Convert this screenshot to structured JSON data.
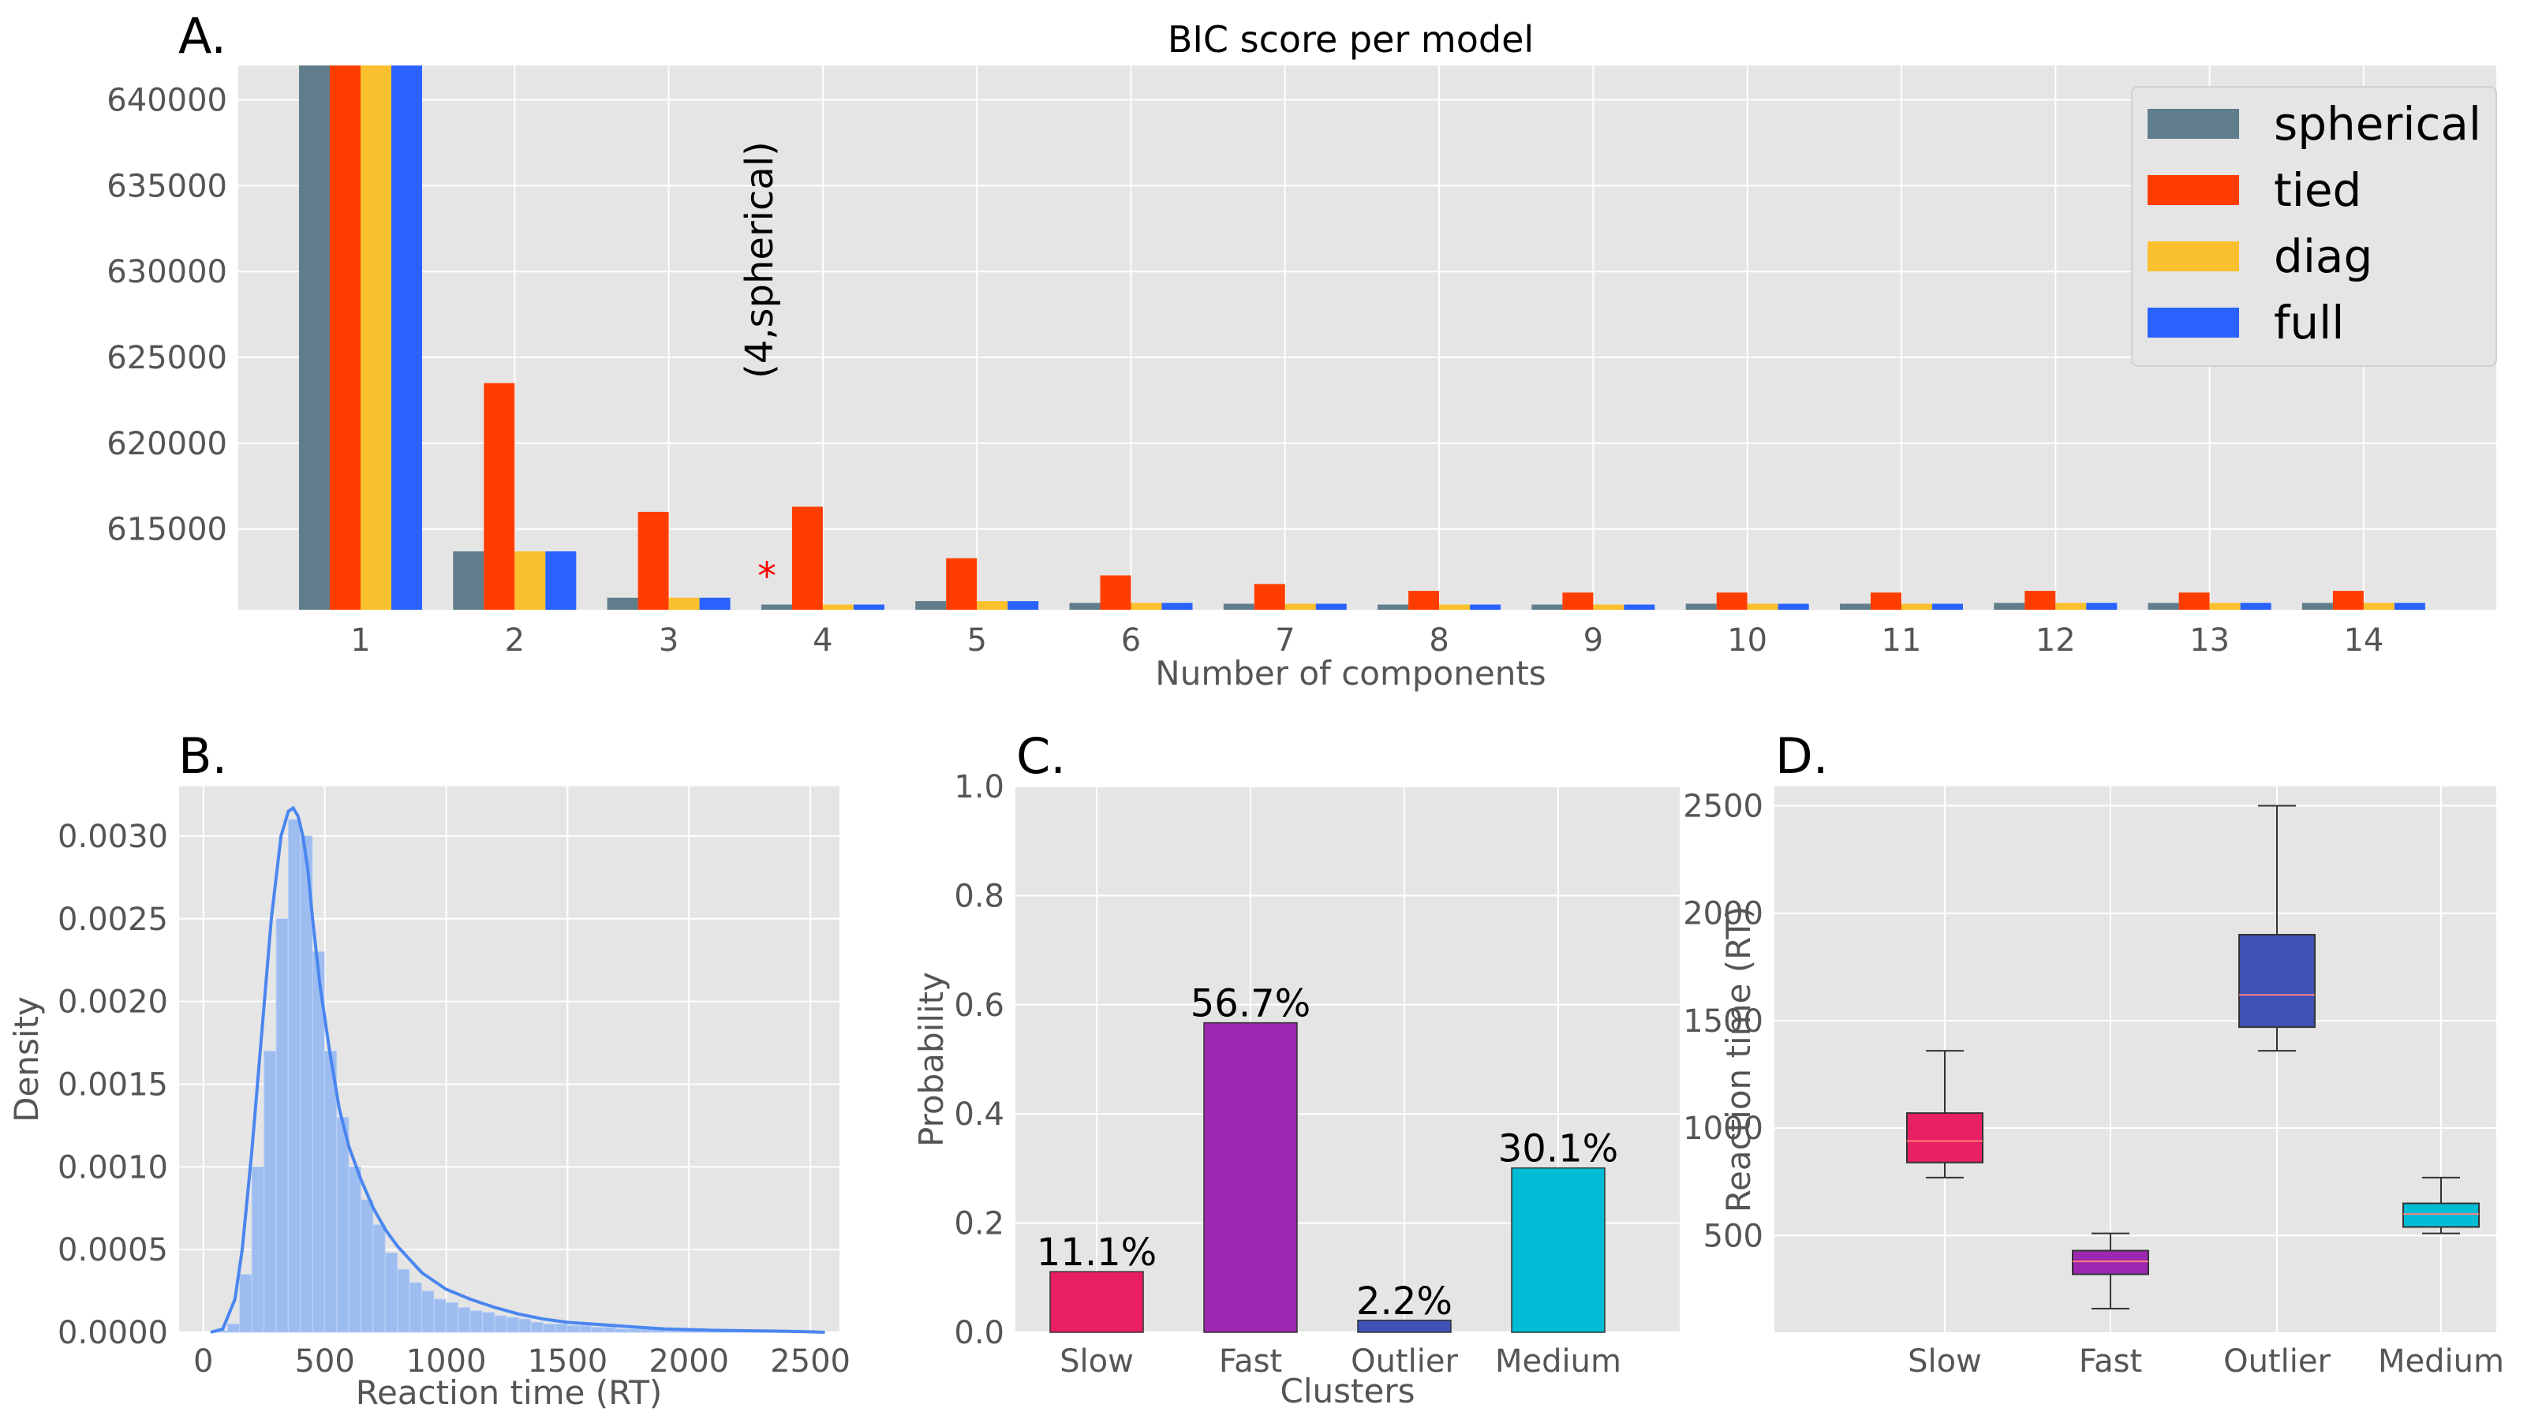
{
  "chart_data": [
    {
      "id": "A",
      "panel_label": "A.",
      "type": "bar",
      "title": "BIC score per model",
      "xlabel": "Number of components",
      "ylabel": "",
      "categories": [
        "1",
        "2",
        "3",
        "4",
        "5",
        "6",
        "7",
        "8",
        "9",
        "10",
        "11",
        "12",
        "13",
        "14"
      ],
      "ylim": [
        610300,
        642000
      ],
      "yticks": [
        "615000",
        "620000",
        "625000",
        "630000",
        "635000",
        "640000"
      ],
      "series": [
        {
          "name": "spherical",
          "color": "#607d8b",
          "values": [
            642000,
            613700,
            611000,
            610600,
            610800,
            610700,
            610650,
            610600,
            610600,
            610650,
            610650,
            610700,
            610700,
            610700
          ]
        },
        {
          "name": "tied",
          "color": "#ff3d00",
          "values": [
            642000,
            623500,
            616000,
            616300,
            613300,
            612300,
            611800,
            611400,
            611300,
            611300,
            611300,
            611400,
            611300,
            611400
          ]
        },
        {
          "name": "diag",
          "color": "#fbc02d",
          "values": [
            642000,
            613700,
            611000,
            610600,
            610800,
            610700,
            610650,
            610600,
            610600,
            610650,
            610650,
            610700,
            610700,
            610700
          ]
        },
        {
          "name": "full",
          "color": "#2962ff",
          "values": [
            642000,
            613700,
            611000,
            610600,
            610800,
            610700,
            610650,
            610600,
            610600,
            610650,
            610650,
            610700,
            610700,
            610700
          ]
        }
      ],
      "annotation": {
        "text": "(4,spherical)",
        "marker": "*",
        "marker_color": "#ff0000",
        "category": "4"
      },
      "legend_position": "top-right",
      "grid": true
    },
    {
      "id": "B",
      "panel_label": "B.",
      "type": "area",
      "xlabel": "Reaction time (RT)",
      "ylabel": "Density",
      "xlim": [
        -100,
        2620
      ],
      "ylim": [
        0,
        0.0033
      ],
      "xticks": [
        "0",
        "500",
        "1000",
        "1500",
        "2000",
        "2500"
      ],
      "yticks": [
        "0.0000",
        "0.0005",
        "0.0010",
        "0.0015",
        "0.0020",
        "0.0025",
        "0.0030"
      ],
      "bar_color": "#9dbcf0",
      "line_color": "#4a86f0",
      "histogram": {
        "bin_width": 50,
        "bins_x": [
          75,
          125,
          175,
          225,
          275,
          325,
          375,
          425,
          475,
          525,
          575,
          625,
          675,
          725,
          775,
          825,
          875,
          925,
          975,
          1025,
          1075,
          1125,
          1175,
          1225,
          1275,
          1325,
          1375,
          1425,
          1475,
          1525,
          1575,
          1625,
          1675,
          1725,
          1775,
          1825,
          1875,
          1925,
          1975,
          2025,
          2075,
          2125,
          2175,
          2225,
          2275,
          2325,
          2375,
          2425,
          2475,
          2525
        ],
        "density": [
          1e-05,
          5e-05,
          0.00035,
          0.001,
          0.0017,
          0.0025,
          0.0031,
          0.003,
          0.0023,
          0.0017,
          0.0013,
          0.001,
          0.0008,
          0.00065,
          0.00048,
          0.00038,
          0.0003,
          0.00025,
          0.0002,
          0.00018,
          0.00015,
          0.00013,
          0.00012,
          0.0001,
          9e-05,
          8e-05,
          6e-05,
          5e-05,
          5e-05,
          4e-05,
          4e-05,
          3e-05,
          3e-05,
          2e-05,
          2e-05,
          2e-05,
          2e-05,
          1e-05,
          1e-05,
          1e-05,
          1e-05,
          1e-05,
          1e-05,
          1e-05,
          1e-05,
          8e-06,
          8e-06,
          6e-06,
          5e-06,
          4e-06
        ]
      },
      "kde": {
        "x": [
          30,
          80,
          130,
          160,
          200,
          240,
          280,
          320,
          350,
          370,
          390,
          410,
          430,
          450,
          480,
          520,
          560,
          600,
          650,
          700,
          750,
          800,
          900,
          1000,
          1100,
          1200,
          1300,
          1400,
          1500,
          1600,
          1700,
          1800,
          1900,
          2000,
          2100,
          2200,
          2300,
          2400,
          2500,
          2560
        ],
        "y": [
          0.0,
          2e-05,
          0.0002,
          0.0005,
          0.0011,
          0.0018,
          0.0025,
          0.003,
          0.00315,
          0.00317,
          0.00312,
          0.003,
          0.0028,
          0.0025,
          0.0021,
          0.0017,
          0.00135,
          0.00112,
          0.00092,
          0.00075,
          0.00062,
          0.00052,
          0.00036,
          0.00026,
          0.0002,
          0.00015,
          0.00011,
          8e-05,
          6e-05,
          5e-05,
          4e-05,
          3e-05,
          2e-05,
          1.6e-05,
          1.2e-05,
          1e-05,
          8e-06,
          6e-06,
          3e-06,
          0.0
        ]
      },
      "grid": true
    },
    {
      "id": "C",
      "panel_label": "C.",
      "type": "bar",
      "xlabel": "Clusters",
      "ylabel": "Probability",
      "categories": [
        "Slow",
        "Fast",
        "Outlier",
        "Medium"
      ],
      "values": [
        0.111,
        0.567,
        0.022,
        0.301
      ],
      "value_labels": [
        "11.1%",
        "56.7%",
        "2.2%",
        "30.1%"
      ],
      "colors": [
        "#e91e63",
        "#9c27b0",
        "#3f51b5",
        "#00bcd4"
      ],
      "ylim": [
        0,
        1.0
      ],
      "yticks": [
        "0.0",
        "0.2",
        "0.4",
        "0.6",
        "0.8",
        "1.0"
      ],
      "grid": true
    },
    {
      "id": "D",
      "panel_label": "D.",
      "type": "box",
      "xlabel": "",
      "ylabel": "Reaction time (RT)",
      "categories": [
        "Slow",
        "Fast",
        "Outlier",
        "Medium"
      ],
      "colors": [
        "#e91e63",
        "#9c27b0",
        "#3f51b5",
        "#00bcd4"
      ],
      "median_color": "#ff7f7f",
      "boxes": [
        {
          "min": 770,
          "q1": 840,
          "median": 940,
          "q3": 1070,
          "max": 1360
        },
        {
          "min": 160,
          "q1": 320,
          "median": 380,
          "q3": 430,
          "max": 510
        },
        {
          "min": 1360,
          "q1": 1470,
          "median": 1620,
          "q3": 1900,
          "max": 2500
        },
        {
          "min": 510,
          "q1": 540,
          "median": 600,
          "q3": 650,
          "max": 770
        }
      ],
      "ylim": [
        50,
        2590
      ],
      "yticks": [
        "500",
        "1000",
        "1500",
        "2000",
        "2500"
      ],
      "grid": true
    }
  ]
}
